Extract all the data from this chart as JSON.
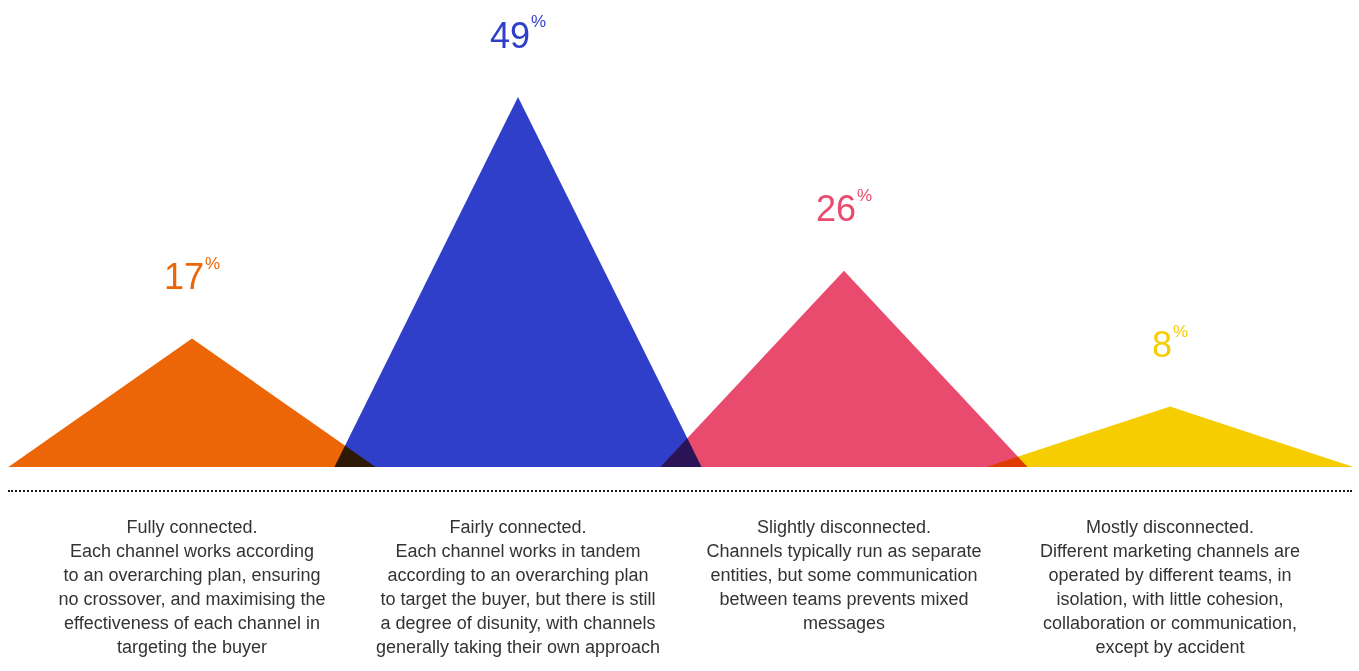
{
  "chart_data": {
    "type": "other",
    "categories": [
      "Fully connected.\nEach channel works according\nto an overarching plan, ensuring\nno crossover, and maximising the\neffectiveness of each channel in\ntargeting the buyer",
      "Fairly connected.\nEach channel works in tandem\naccording to an overarching plan\nto target the buyer, but there is still\na degree of disunity, with channels\ngenerally taking their own approach",
      "Slightly disconnected.\nChannels typically run as separate\nentities, but some communication\nbetween teams prevents mixed\nmessages",
      "Mostly disconnected.\nDifferent marketing channels are\noperated by different teams, in\nisolation, with little cohesion,\ncollaboration or communication,\nexcept by accident"
    ],
    "values": [
      17,
      49,
      26,
      8
    ],
    "colors": [
      "#ec6608",
      "#2f3fca",
      "#e94b6e",
      "#f5cd00"
    ],
    "value_labels": [
      "17$^{%}$",
      "49$^{%}$",
      "26$^{%}$",
      "8$^{%}$"
    ]
  }
}
